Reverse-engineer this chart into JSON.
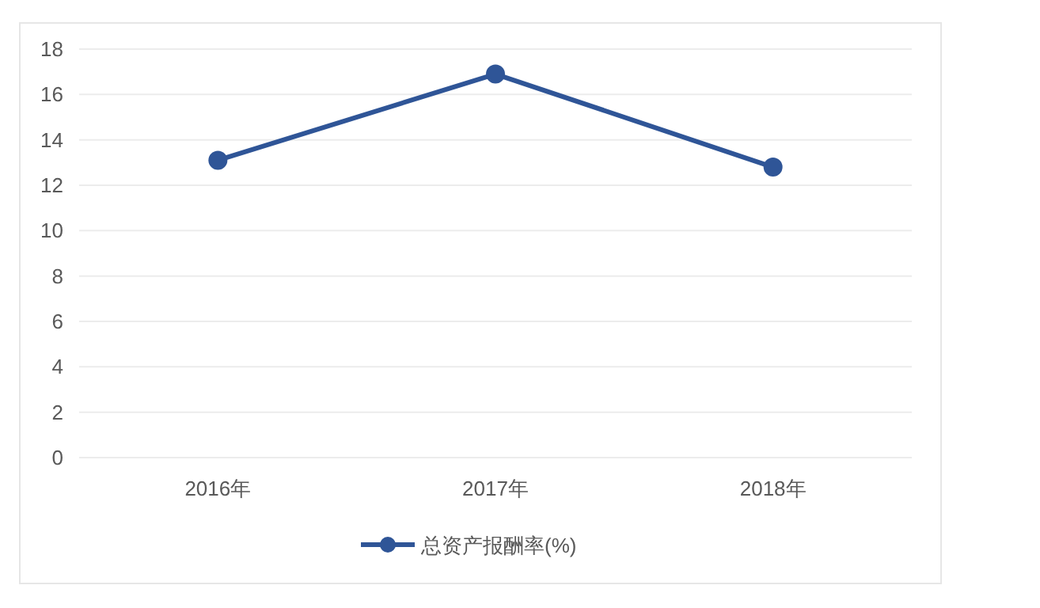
{
  "chart_data": {
    "type": "line",
    "categories": [
      "2016年",
      "2017年",
      "2018年"
    ],
    "series": [
      {
        "name": "总资产报酬率(%)",
        "color": "#2f5597",
        "values": [
          13.1,
          16.9,
          12.8
        ]
      }
    ],
    "ylim": [
      0,
      18
    ],
    "yticks": [
      0,
      2,
      4,
      6,
      8,
      10,
      12,
      14,
      16,
      18
    ],
    "grid": "y",
    "legend": "bottom",
    "marker": "circle",
    "line_style": "solid"
  }
}
